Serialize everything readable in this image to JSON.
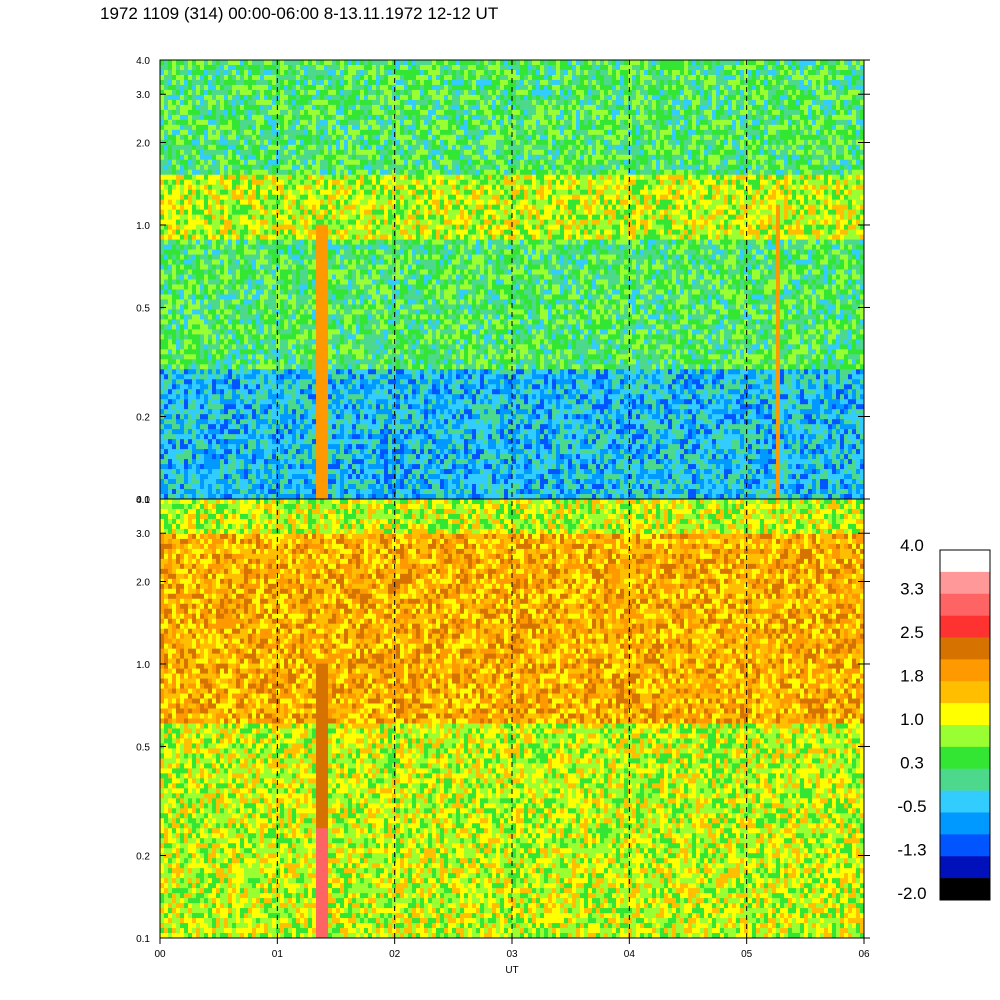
{
  "title": "1972 1109 (314) 00:00-06:00 8-13.11.1972  12-12 UT",
  "chart_data": {
    "type": "heatmap",
    "xlabel": "UT",
    "x_tick_labels": [
      "00",
      "01",
      "02",
      "03",
      "04",
      "05",
      "06"
    ],
    "x_range": [
      0,
      6
    ],
    "y_scale": "log",
    "y_range": [
      0.1,
      4.0
    ],
    "y_tick_labels": [
      "0.1",
      "0.2",
      "0.5",
      "1.0",
      "2.0",
      "3.0",
      "4.0"
    ],
    "y_tick_values": [
      0.1,
      0.2,
      0.5,
      1.0,
      2.0,
      3.0,
      4.0
    ],
    "vertical_gridlines": "dashed, hourly",
    "panels": [
      {
        "name": "upper panel",
        "background_level": "-0.5 to 0.3",
        "band_profile": [
          {
            "y_min": 0.1,
            "y_max": 0.3,
            "level": -0.5
          },
          {
            "y_min": 0.3,
            "y_max": 0.9,
            "level": 0.3
          },
          {
            "y_min": 0.9,
            "y_max": 1.5,
            "level": 1.0
          },
          {
            "y_min": 1.5,
            "y_max": 4.0,
            "level": 0.3
          }
        ],
        "notable_features": [
          {
            "x_start": 1.32,
            "x_end": 1.42,
            "y_min": 0.1,
            "y_max": 1.0,
            "level": 1.8
          },
          {
            "x_start": 5.25,
            "x_end": 5.3,
            "y_min": 0.1,
            "y_max": 1.2,
            "level": 1.8
          }
        ]
      },
      {
        "name": "lower panel",
        "background_level": "1.0 to 1.8",
        "band_profile": [
          {
            "y_min": 0.1,
            "y_max": 0.6,
            "level": 1.0
          },
          {
            "y_min": 0.6,
            "y_max": 1.2,
            "level": 1.8
          },
          {
            "y_min": 1.2,
            "y_max": 3.0,
            "level": 1.8
          },
          {
            "y_min": 3.0,
            "y_max": 4.0,
            "level": 1.0
          }
        ],
        "notable_features": [
          {
            "x_start": 1.32,
            "x_end": 1.42,
            "y_min": 0.1,
            "y_max": 0.25,
            "level": 3.3
          },
          {
            "x_start": 1.32,
            "x_end": 1.42,
            "y_min": 0.25,
            "y_max": 1.0,
            "level": 2.5
          }
        ]
      }
    ],
    "colorbar": {
      "tick_labels": [
        "4.0",
        "3.3",
        "2.5",
        "1.8",
        "1.0",
        "0.3",
        "-0.5",
        "-1.3",
        "-2.0"
      ],
      "colors": [
        "#ffffff",
        "#ff9898",
        "#ff6464",
        "#ff3232",
        "#d67300",
        "#ff9900",
        "#ffbf00",
        "#ffff00",
        "#99ff33",
        "#33e633",
        "#4dd98c",
        "#33ccff",
        "#0099ff",
        "#0055ff",
        "#0011bb",
        "#000000"
      ]
    }
  }
}
